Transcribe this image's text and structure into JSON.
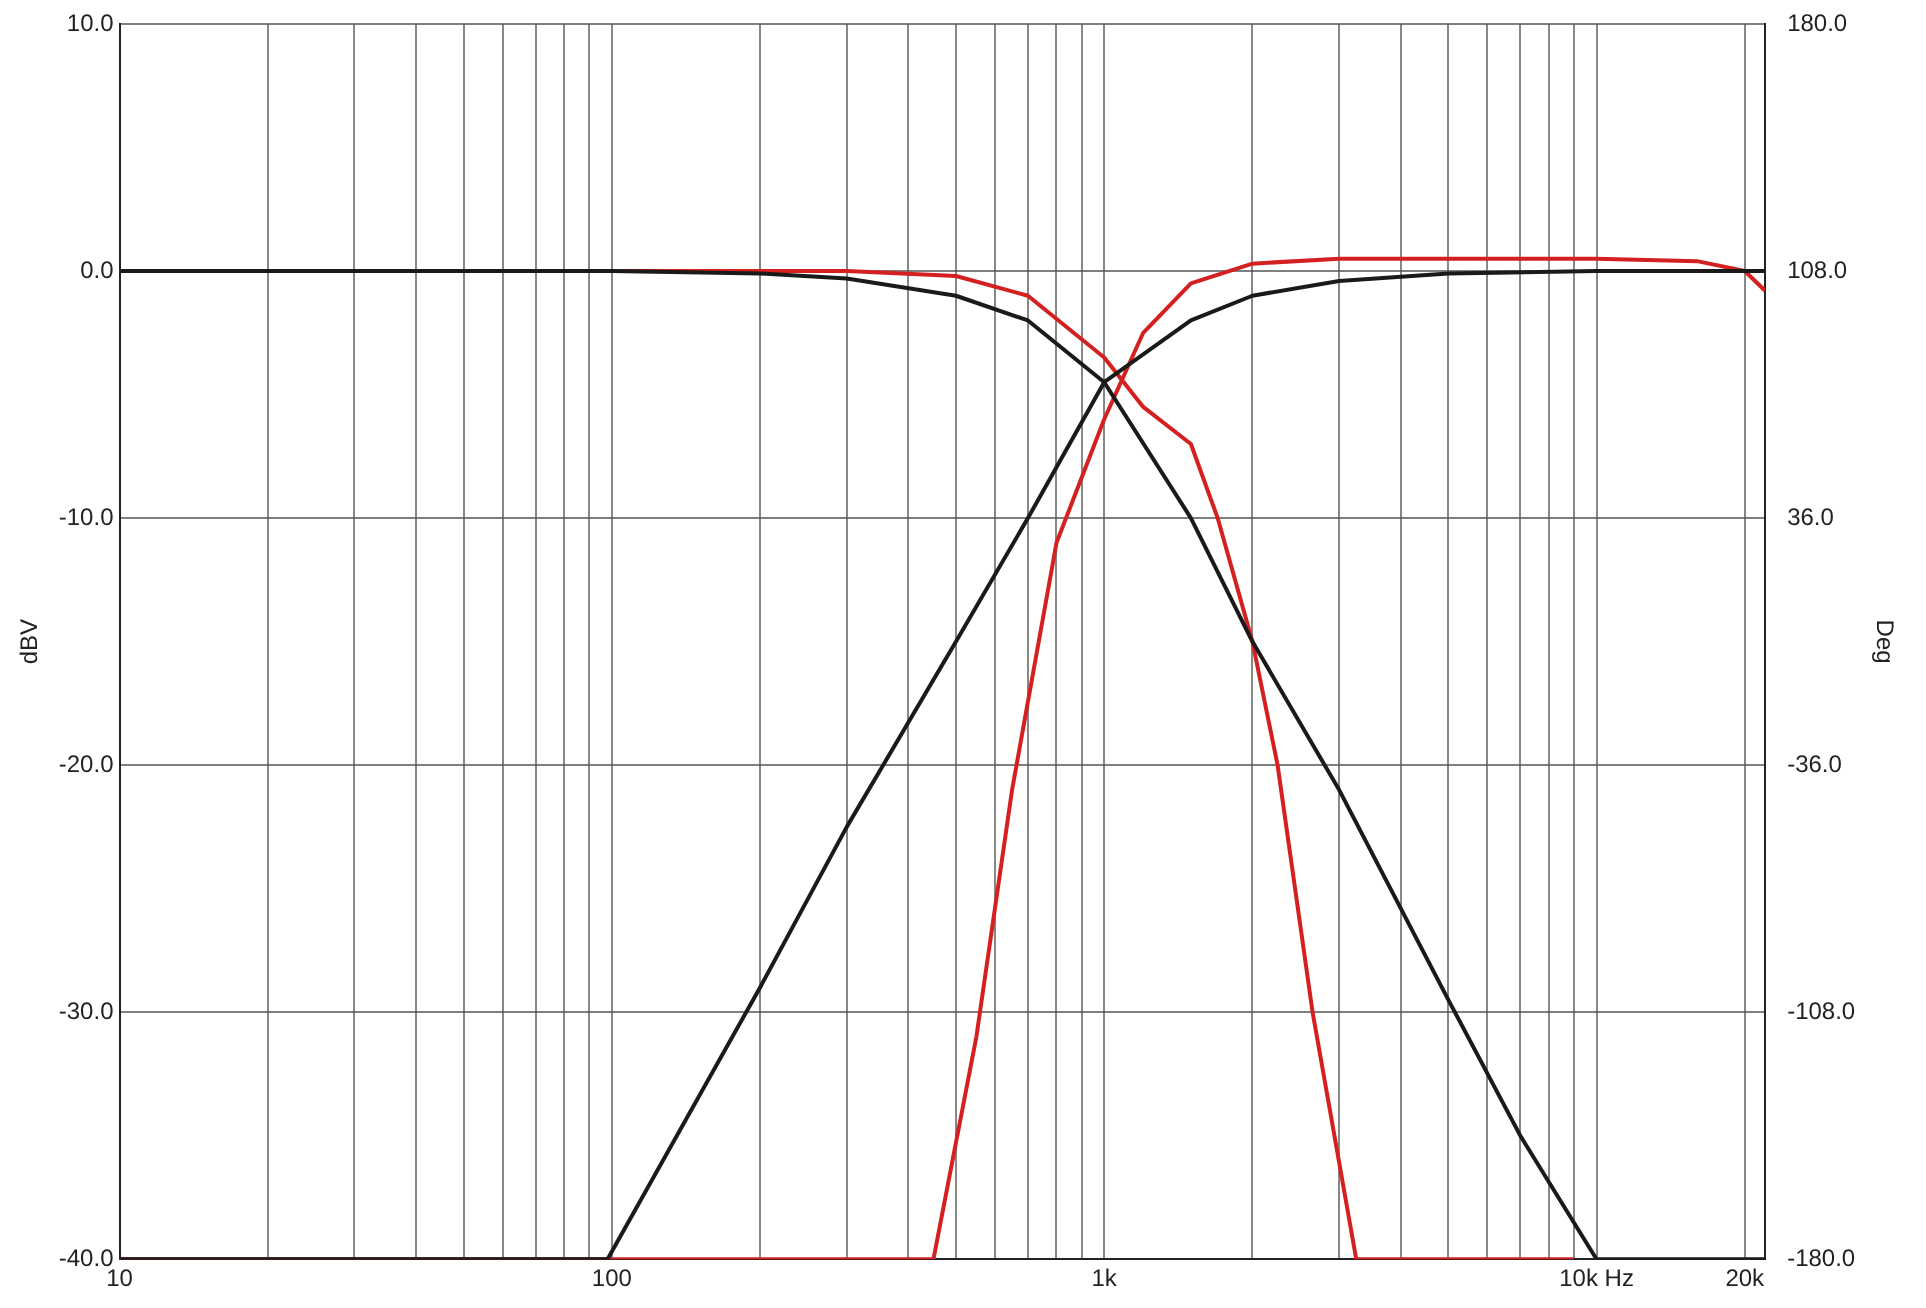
{
  "chart_data": {
    "type": "line",
    "ylabel": "dBV",
    "y2label": "Deg",
    "log": "x",
    "grid": true,
    "legend": false,
    "marker": "none",
    "line_style": "solid",
    "xlim": [
      10,
      22000
    ],
    "xticks": [
      10,
      {
        "value": 20,
        "label": null
      },
      {
        "value": 30,
        "label": null
      },
      {
        "value": 40,
        "label": null
      },
      {
        "value": 50,
        "label": null
      },
      {
        "value": 60,
        "label": null
      },
      {
        "value": 70,
        "label": null
      },
      {
        "value": 80,
        "label": null
      },
      {
        "value": 90,
        "label": null
      },
      100,
      {
        "value": 200,
        "label": null
      },
      {
        "value": 300,
        "label": null
      },
      {
        "value": 400,
        "label": null
      },
      {
        "value": 500,
        "label": null
      },
      {
        "value": 600,
        "label": null
      },
      {
        "value": 700,
        "label": null
      },
      {
        "value": 800,
        "label": null
      },
      {
        "value": 900,
        "label": null
      },
      {
        "value": 1000,
        "label": "1k"
      },
      {
        "value": 2000,
        "label": null
      },
      {
        "value": 3000,
        "label": null
      },
      {
        "value": 4000,
        "label": null
      },
      {
        "value": 5000,
        "label": null
      },
      {
        "value": 6000,
        "label": null
      },
      {
        "value": 7000,
        "label": null
      },
      {
        "value": 8000,
        "label": null
      },
      {
        "value": 9000,
        "label": null
      },
      {
        "value": 10000,
        "label": "10k Hz"
      },
      {
        "value": 20000,
        "label": "20k"
      }
    ],
    "ylim": [
      -40,
      10
    ],
    "yticks": [
      {
        "value": -40,
        "label": "-40.0"
      },
      {
        "value": -30,
        "label": "-30.0"
      },
      {
        "value": -20,
        "label": "-20.0"
      },
      {
        "value": -10,
        "label": "-10.0"
      },
      {
        "value": 0,
        "label": "0.0"
      },
      {
        "value": 10,
        "label": "10.0"
      }
    ],
    "y2lim": [
      -180,
      180
    ],
    "y2ticks": [
      {
        "value": -180,
        "label": "-180.0"
      },
      {
        "value": -108,
        "label": "-108.0"
      },
      {
        "value": -36,
        "label": "-36.0"
      },
      {
        "value": 36,
        "label": "36.0"
      },
      {
        "value": 108,
        "label": "108.0"
      },
      {
        "value": 180,
        "label": "180.0"
      }
    ],
    "series": [
      {
        "color": "#1a1a1a",
        "x": [
          10,
          100,
          200,
          300,
          500,
          700,
          1000,
          1500,
          2000,
          3000,
          5000,
          7000,
          10000,
          22000
        ],
        "values": [
          0,
          0,
          -0.1,
          -0.3,
          -1,
          -2,
          -4.5,
          -10,
          -15,
          -21,
          -29.5,
          -35,
          -40,
          -40
        ]
      },
      {
        "color": "#1a1a1a",
        "x": [
          10,
          98,
          200,
          300,
          500,
          700,
          1000,
          1500,
          2000,
          3000,
          5000,
          10000,
          22000
        ],
        "values": [
          -40,
          -40,
          -29,
          -22.5,
          -15,
          -10,
          -4.5,
          -2,
          -1,
          -0.4,
          -0.1,
          0,
          0
        ]
      },
      {
        "color": "#d42020",
        "x": [
          10,
          450,
          550,
          650,
          800,
          1000,
          1200,
          1500,
          2000,
          3000,
          10000,
          16000,
          20000,
          22000
        ],
        "values": [
          -40,
          -40,
          -31,
          -21,
          -11,
          -6,
          -2.5,
          -0.5,
          0.3,
          0.5,
          0.5,
          0.4,
          0,
          -0.8
        ]
      },
      {
        "color": "#d42020",
        "x": [
          10,
          300,
          500,
          700,
          1000,
          1200,
          1500,
          1700,
          2000,
          2250,
          2650,
          3250,
          9000
        ],
        "values": [
          0,
          0,
          -0.2,
          -1,
          -3.5,
          -5.5,
          -7,
          -10,
          -15,
          -20,
          -30,
          -40,
          -40
        ]
      }
    ]
  }
}
